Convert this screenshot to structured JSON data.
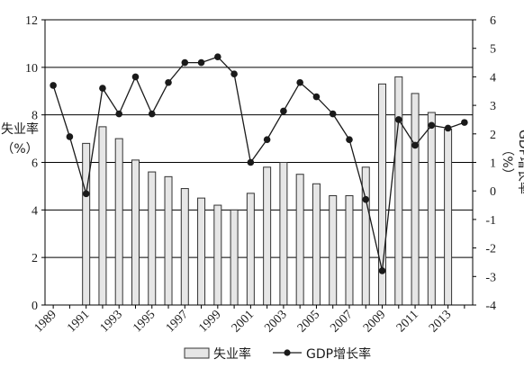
{
  "chart_data": {
    "type": "bar+line",
    "years": [
      1989,
      1990,
      1991,
      1992,
      1993,
      1994,
      1995,
      1996,
      1997,
      1998,
      1999,
      2000,
      2001,
      2002,
      2003,
      2004,
      2005,
      2006,
      2007,
      2008,
      2009,
      2010,
      2011,
      2012,
      2013,
      2014
    ],
    "x_tick_labels": [
      "1989",
      "1991",
      "1993",
      "1995",
      "1997",
      "1999",
      "2001",
      "2003",
      "2005",
      "2007",
      "2009",
      "2011",
      "2013"
    ],
    "left_axis": {
      "label": "失业率\n（%）",
      "ylim": [
        0,
        12
      ],
      "ticks": [
        "0",
        "2",
        "4",
        "6",
        "8",
        "10",
        "12"
      ]
    },
    "right_axis": {
      "label": "GDP增长率\n（%）",
      "ylim": [
        -4,
        6
      ],
      "ticks": [
        "-4",
        "-3",
        "-2",
        "-1",
        "0",
        "1",
        "2",
        "3",
        "4",
        "5",
        "6"
      ]
    },
    "series": [
      {
        "name": "失业率",
        "type": "bar",
        "axis": "left",
        "color": "#e6e6e6",
        "values": [
          null,
          null,
          6.8,
          7.5,
          7.0,
          6.1,
          5.6,
          5.4,
          4.9,
          4.5,
          4.2,
          4.0,
          4.7,
          5.8,
          6.0,
          5.5,
          5.1,
          4.6,
          4.6,
          5.8,
          9.3,
          9.6,
          8.9,
          8.1,
          7.4,
          null
        ]
      },
      {
        "name": "GDP增长率",
        "type": "line",
        "axis": "right",
        "color": "#1a1a1a",
        "values": [
          3.7,
          1.9,
          -0.1,
          3.6,
          2.7,
          4.0,
          2.7,
          3.8,
          4.5,
          4.5,
          4.7,
          4.1,
          1.0,
          1.8,
          2.8,
          3.8,
          3.3,
          2.7,
          1.8,
          -0.3,
          -2.8,
          2.5,
          1.6,
          2.3,
          2.2,
          2.4
        ]
      }
    ],
    "grid": "horizontal",
    "legend_position": "bottom"
  }
}
